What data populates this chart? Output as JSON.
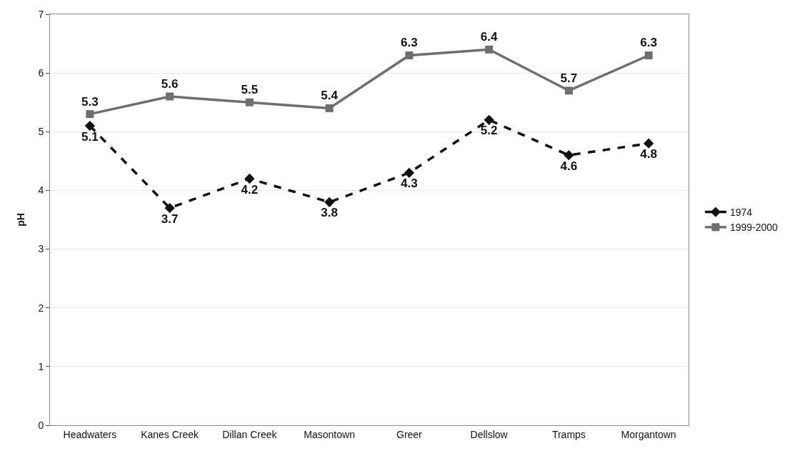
{
  "chart_data": {
    "type": "line",
    "ylabel": "pH",
    "categories": [
      "Headwaters",
      "Kanes Creek",
      "Dillan Creek",
      "Masontown",
      "Greer",
      "Dellslow",
      "Tramps",
      "Morgantown"
    ],
    "series": [
      {
        "name": "1974",
        "color": "#111111",
        "values": [
          5.1,
          3.7,
          4.2,
          3.8,
          4.3,
          5.2,
          4.6,
          4.8
        ],
        "marker": "diamond",
        "line_style": "dashed"
      },
      {
        "name": "1999-2000",
        "color": "#6e6e6e",
        "values": [
          5.3,
          5.6,
          5.5,
          5.4,
          6.3,
          6.4,
          5.7,
          6.3
        ],
        "marker": "square",
        "line_style": "solid"
      }
    ],
    "ylim": [
      0,
      7
    ],
    "yticks": [
      0,
      1,
      2,
      3,
      4,
      5,
      6,
      7
    ],
    "grid": "y",
    "legend": "right",
    "data_labels": true
  }
}
